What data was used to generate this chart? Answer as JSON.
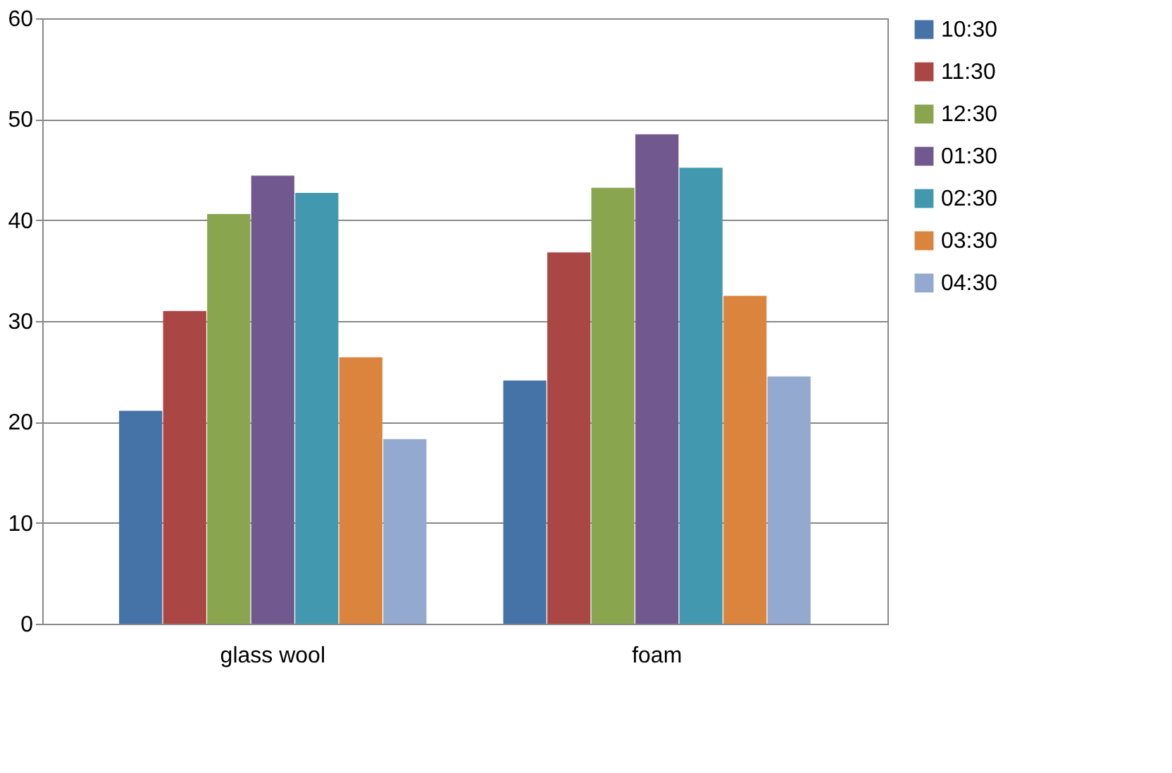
{
  "chart_data": {
    "type": "bar",
    "categories": [
      "glass wool",
      "foam"
    ],
    "series": [
      {
        "name": "10:30",
        "color": "#4572a7",
        "values": [
          21.1,
          24.1
        ]
      },
      {
        "name": "11:30",
        "color": "#aa4643",
        "values": [
          31.0,
          36.8
        ]
      },
      {
        "name": "12:30",
        "color": "#89a54e",
        "values": [
          40.6,
          43.2
        ]
      },
      {
        "name": "01:30",
        "color": "#71588f",
        "values": [
          44.4,
          48.5
        ]
      },
      {
        "name": "02:30",
        "color": "#4198af",
        "values": [
          42.7,
          45.2
        ]
      },
      {
        "name": "03:30",
        "color": "#db843d",
        "values": [
          26.4,
          32.5
        ]
      },
      {
        "name": "04:30",
        "color": "#93a9cf",
        "values": [
          18.3,
          24.5
        ]
      }
    ],
    "ylim": [
      0,
      60
    ],
    "yticks": [
      0,
      10,
      20,
      30,
      40,
      50,
      60
    ],
    "grid": "y",
    "legend": "right"
  }
}
